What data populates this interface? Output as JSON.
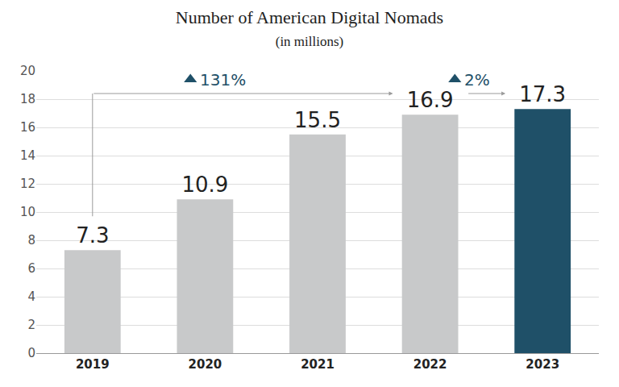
{
  "chart_data": {
    "type": "bar",
    "title": "Number of American Digital Nomads",
    "subtitle": "(in millions)",
    "categories": [
      "2019",
      "2020",
      "2021",
      "2022",
      "2023"
    ],
    "values": [
      7.3,
      10.9,
      15.5,
      16.9,
      17.3
    ],
    "colors": [
      "#c8c9ca",
      "#c8c9ca",
      "#c8c9ca",
      "#c8c9ca",
      "#1f5068"
    ],
    "ylim": [
      0,
      20
    ],
    "yticks": [
      0,
      2,
      4,
      6,
      8,
      10,
      12,
      14,
      16,
      18,
      20
    ],
    "grid": true,
    "data_labels": true,
    "annotations": [
      {
        "text": "131%",
        "from": "2019",
        "to": "2022"
      },
      {
        "text": "2%",
        "from": "2022",
        "to": "2023"
      }
    ]
  }
}
